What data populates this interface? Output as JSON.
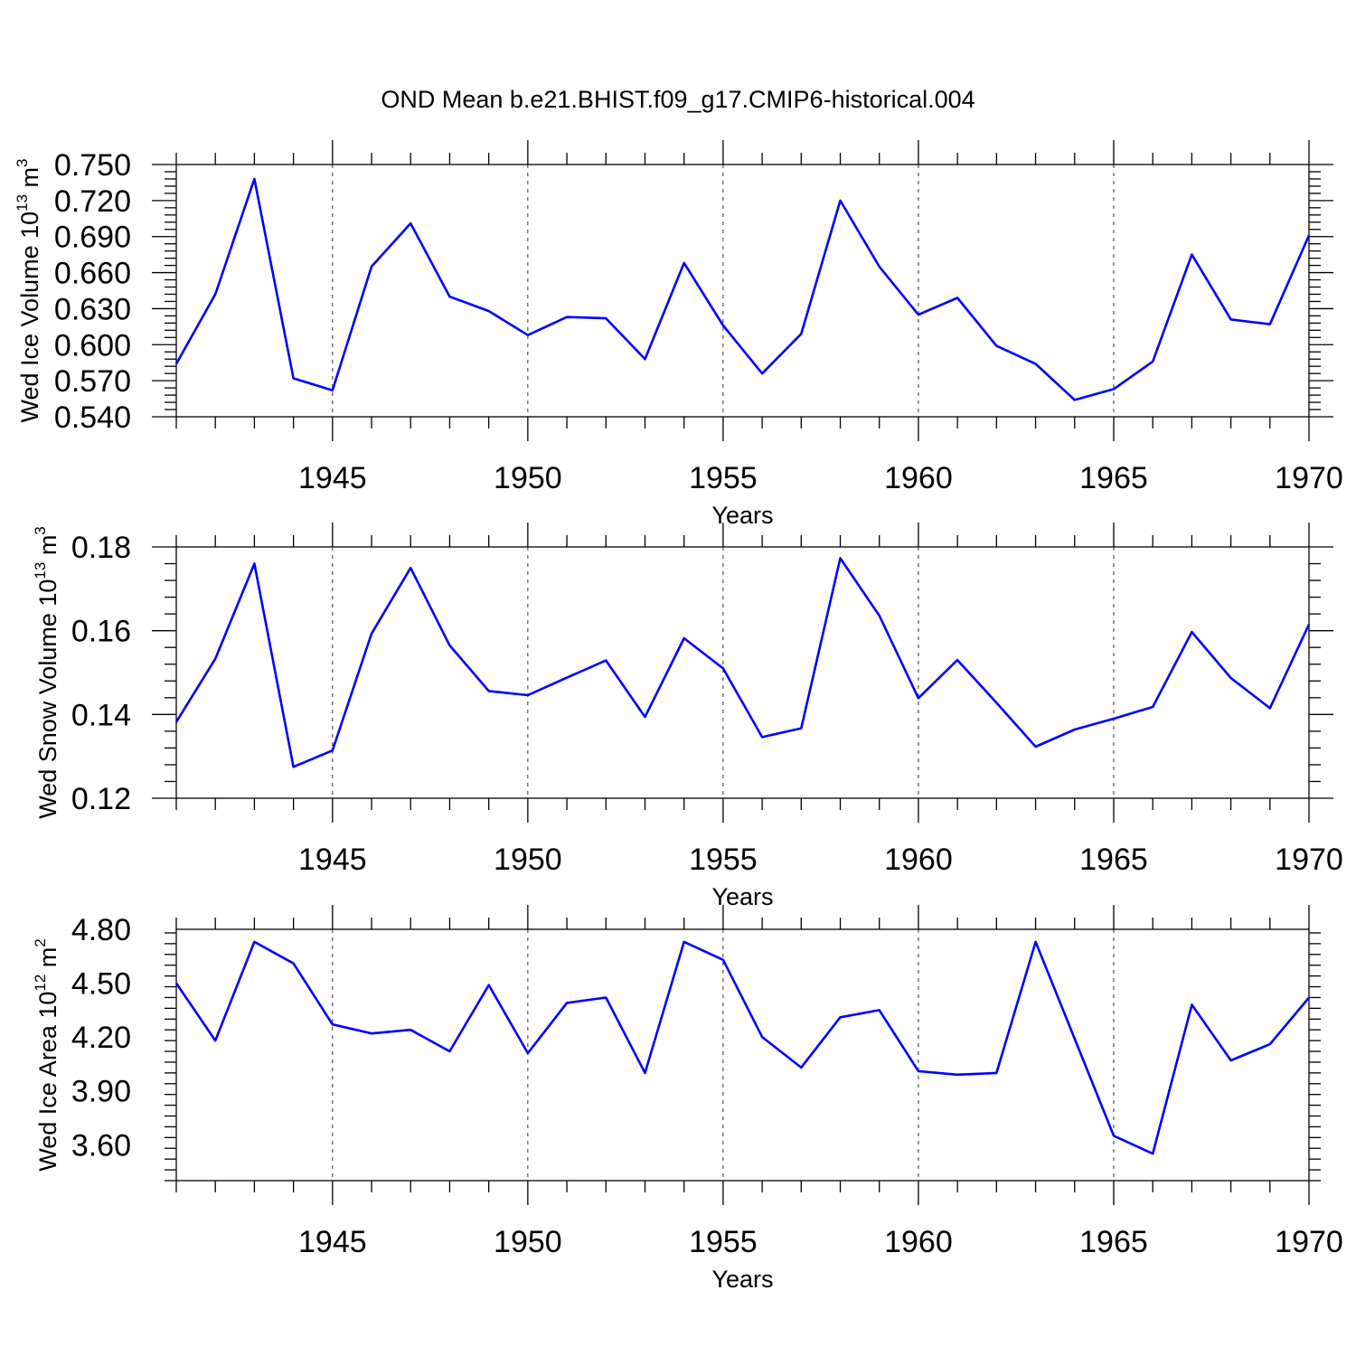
{
  "title": "OND Mean b.e21.BHIST.f09_g17.CMIP6-historical.004",
  "colors": {
    "series": "#0000ff",
    "axis": "#000000",
    "grid": "#333333"
  },
  "chart_data": [
    {
      "type": "line",
      "xlabel": "Years",
      "ylabel": {
        "prefix": "Wed Ice Volume 10",
        "exponent": "13",
        "unit": " m",
        "unit_exponent": "3"
      },
      "xlim": [
        1941,
        1970
      ],
      "ylim": [
        0.54,
        0.75
      ],
      "x_ticks": [
        "1945",
        "1950",
        "1955",
        "1960",
        "1965",
        "1970"
      ],
      "y_ticks": [
        "0.540",
        "0.570",
        "0.600",
        "0.630",
        "0.660",
        "0.690",
        "0.720",
        "0.750"
      ],
      "grid": "dashed vertical at major x ticks",
      "x": [
        1941,
        1942,
        1943,
        1944,
        1945,
        1946,
        1947,
        1948,
        1949,
        1950,
        1951,
        1952,
        1953,
        1954,
        1955,
        1956,
        1957,
        1958,
        1959,
        1960,
        1961,
        1962,
        1963,
        1964,
        1965,
        1966,
        1967,
        1968,
        1969,
        1970
      ],
      "values": [
        0.584,
        0.642,
        0.738,
        0.572,
        0.562,
        0.665,
        0.701,
        0.64,
        0.628,
        0.608,
        0.623,
        0.622,
        0.588,
        0.668,
        0.616,
        0.576,
        0.609,
        0.72,
        0.665,
        0.625,
        0.639,
        0.599,
        0.584,
        0.554,
        0.563,
        0.586,
        0.675,
        0.621,
        0.617,
        0.691
      ]
    },
    {
      "type": "line",
      "xlabel": "Years",
      "ylabel": {
        "prefix": "Wed Snow Volume 10",
        "exponent": "13",
        "unit": " m",
        "unit_exponent": "3"
      },
      "xlim": [
        1941,
        1970
      ],
      "ylim": [
        0.12,
        0.18
      ],
      "x_ticks": [
        "1945",
        "1950",
        "1955",
        "1960",
        "1965",
        "1970"
      ],
      "y_ticks": [
        "0.12",
        "0.14",
        "0.16",
        "0.18"
      ],
      "grid": "dashed vertical at major x ticks",
      "x": [
        1941,
        1942,
        1943,
        1944,
        1945,
        1946,
        1947,
        1948,
        1949,
        1950,
        1951,
        1952,
        1953,
        1954,
        1955,
        1956,
        1957,
        1958,
        1959,
        1960,
        1961,
        1962,
        1963,
        1964,
        1965,
        1966,
        1967,
        1968,
        1969,
        1970
      ],
      "values": [
        0.1382,
        0.1533,
        0.176,
        0.1275,
        0.1314,
        0.1593,
        0.175,
        0.1565,
        0.1456,
        0.1446,
        0.1488,
        0.1529,
        0.1394,
        0.1582,
        0.151,
        0.1346,
        0.1367,
        0.1773,
        0.1636,
        0.1439,
        0.153,
        0.1428,
        0.1323,
        0.1364,
        0.139,
        0.1418,
        0.1597,
        0.1487,
        0.1415,
        0.1615
      ]
    },
    {
      "type": "line",
      "xlabel": "Years",
      "ylabel": {
        "prefix": "Wed Ice Area 10",
        "exponent": "12",
        "unit": " m",
        "unit_exponent": "2"
      },
      "xlim": [
        1941,
        1970
      ],
      "ylim": [
        3.4,
        4.8
      ],
      "x_ticks": [
        "1945",
        "1950",
        "1955",
        "1960",
        "1965",
        "1970"
      ],
      "y_ticks": [
        "3.60",
        "3.90",
        "4.20",
        "4.50",
        "4.80"
      ],
      "grid": "dashed vertical at major x ticks",
      "x": [
        1941,
        1942,
        1943,
        1944,
        1945,
        1946,
        1947,
        1948,
        1949,
        1950,
        1951,
        1952,
        1953,
        1954,
        1955,
        1956,
        1957,
        1958,
        1959,
        1960,
        1961,
        1962,
        1963,
        1964,
        1965,
        1966,
        1967,
        1968,
        1969,
        1970
      ],
      "values": [
        4.5,
        4.18,
        4.73,
        4.61,
        4.27,
        4.22,
        4.24,
        4.12,
        4.49,
        4.11,
        4.39,
        4.42,
        4.0,
        4.73,
        4.63,
        4.2,
        4.03,
        4.31,
        4.35,
        4.01,
        3.99,
        4.0,
        4.73,
        4.19,
        3.65,
        3.55,
        4.38,
        4.07,
        4.16,
        4.42
      ]
    }
  ]
}
